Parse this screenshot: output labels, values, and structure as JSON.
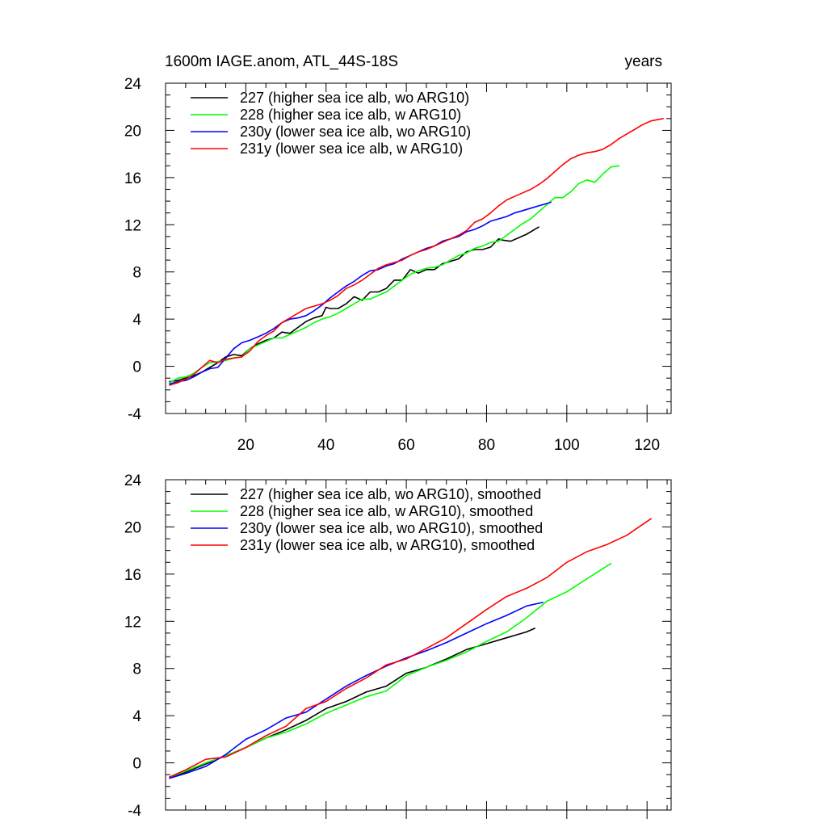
{
  "figure": {
    "title_left": "1600m IAGE.anom, ATL_44S-18S",
    "title_right": "years"
  },
  "chart_data": [
    {
      "type": "line",
      "panel": "top",
      "title": "1600m IAGE.anom, ATL_44S-18S",
      "units": "years",
      "xlim": [
        0,
        126
      ],
      "ylim": [
        -4,
        24
      ],
      "xticks": [
        20,
        40,
        60,
        80,
        100,
        120
      ],
      "xtick_labels_shown": true,
      "yticks": [
        -4,
        0,
        4,
        8,
        12,
        16,
        20,
        24
      ],
      "legend_position": "top-left",
      "series": [
        {
          "name": "227 (higher sea ice alb, wo ARG10)",
          "color": "#000000",
          "x": [
            1,
            3,
            5,
            7,
            9,
            11,
            13,
            15,
            17,
            19,
            21,
            23,
            25,
            27,
            29,
            31,
            33,
            35,
            37,
            39,
            40,
            41,
            43,
            45,
            47,
            49,
            51,
            53,
            55,
            57,
            59,
            61,
            63,
            65,
            67,
            69,
            71,
            73,
            75,
            77,
            79,
            81,
            83,
            84,
            86,
            88,
            90,
            92,
            93
          ],
          "y": [
            -1.3,
            -1.2,
            -1.0,
            -0.8,
            -0.5,
            -0.1,
            0.3,
            0.8,
            1.0,
            0.9,
            1.5,
            1.9,
            2.2,
            2.4,
            2.9,
            2.8,
            3.3,
            3.8,
            4.1,
            4.3,
            5.0,
            4.9,
            4.9,
            5.3,
            5.9,
            5.6,
            6.3,
            6.3,
            6.6,
            7.3,
            7.3,
            8.2,
            7.9,
            8.2,
            8.2,
            8.7,
            8.9,
            9.1,
            9.7,
            9.9,
            9.9,
            10.1,
            10.8,
            10.7,
            10.6,
            10.9,
            11.2,
            11.6,
            11.8
          ]
        },
        {
          "name": "228 (higher sea ice alb, w ARG10)",
          "color": "#00ff00",
          "x": [
            1,
            3,
            5,
            7,
            9,
            11,
            13,
            15,
            17,
            19,
            21,
            23,
            25,
            27,
            29,
            31,
            33,
            35,
            37,
            39,
            41,
            43,
            45,
            47,
            49,
            51,
            53,
            55,
            57,
            59,
            61,
            63,
            65,
            67,
            69,
            71,
            73,
            75,
            77,
            79,
            81,
            83,
            85,
            87,
            89,
            91,
            93,
            95,
            97,
            99,
            101,
            103,
            105,
            107,
            109,
            111,
            113
          ],
          "y": [
            -1.4,
            -1.0,
            -0.9,
            -0.6,
            -0.1,
            0.3,
            0.4,
            0.5,
            0.7,
            0.8,
            1.5,
            1.8,
            2.1,
            2.4,
            2.4,
            2.7,
            3.0,
            3.3,
            3.7,
            4.0,
            4.2,
            4.5,
            4.9,
            5.3,
            5.7,
            5.7,
            6.0,
            6.3,
            6.8,
            7.3,
            7.8,
            8.1,
            8.3,
            8.4,
            8.6,
            9.0,
            9.4,
            9.6,
            10.0,
            10.2,
            10.5,
            10.6,
            11.1,
            11.6,
            12.1,
            12.5,
            13.1,
            13.7,
            14.3,
            14.3,
            14.8,
            15.5,
            15.8,
            15.6,
            16.3,
            16.9,
            17.0
          ]
        },
        {
          "name": "230y (lower sea ice alb, wo ARG10)",
          "color": "#0000ff",
          "x": [
            1,
            3,
            5,
            7,
            9,
            11,
            13,
            15,
            17,
            19,
            21,
            23,
            25,
            27,
            29,
            31,
            33,
            35,
            37,
            39,
            41,
            43,
            45,
            47,
            49,
            51,
            53,
            55,
            57,
            59,
            61,
            63,
            65,
            67,
            69,
            71,
            73,
            75,
            77,
            79,
            81,
            83,
            85,
            87,
            89,
            91,
            93,
            95,
            96
          ],
          "y": [
            -1.5,
            -1.3,
            -1.2,
            -0.9,
            -0.5,
            -0.2,
            -0.1,
            0.7,
            1.5,
            2.0,
            2.2,
            2.5,
            2.8,
            3.2,
            3.7,
            4.0,
            4.1,
            4.3,
            4.7,
            5.2,
            5.8,
            6.3,
            6.8,
            7.2,
            7.7,
            8.1,
            8.2,
            8.5,
            8.7,
            9.1,
            9.4,
            9.7,
            10.0,
            10.2,
            10.6,
            10.8,
            11.0,
            11.4,
            11.6,
            11.9,
            12.3,
            12.5,
            12.7,
            13.0,
            13.2,
            13.4,
            13.6,
            13.8,
            13.9
          ]
        },
        {
          "name": "231y (lower sea ice alb, w ARG10)",
          "color": "#ff0000",
          "x": [
            1,
            3,
            5,
            7,
            9,
            11,
            13,
            15,
            17,
            19,
            21,
            23,
            25,
            27,
            29,
            31,
            33,
            35,
            37,
            39,
            41,
            43,
            45,
            47,
            49,
            51,
            53,
            55,
            57,
            59,
            61,
            63,
            65,
            67,
            69,
            71,
            73,
            75,
            77,
            79,
            81,
            83,
            85,
            87,
            89,
            91,
            93,
            95,
            97,
            99,
            101,
            103,
            105,
            107,
            109,
            111,
            113,
            115,
            117,
            119,
            121,
            124
          ],
          "y": [
            -1.6,
            -1.4,
            -1.1,
            -0.7,
            -0.1,
            0.5,
            0.3,
            0.6,
            0.7,
            0.8,
            1.3,
            2.1,
            2.6,
            3.0,
            3.7,
            4.1,
            4.5,
            4.9,
            5.1,
            5.3,
            5.6,
            6.0,
            6.6,
            6.9,
            7.3,
            7.8,
            8.3,
            8.6,
            8.8,
            9.0,
            9.4,
            9.7,
            9.9,
            10.2,
            10.5,
            10.8,
            11.1,
            11.5,
            12.2,
            12.5,
            13.0,
            13.6,
            14.1,
            14.4,
            14.7,
            15.0,
            15.4,
            15.9,
            16.5,
            17.1,
            17.6,
            17.9,
            18.1,
            18.2,
            18.4,
            18.8,
            19.3,
            19.7,
            20.1,
            20.5,
            20.8,
            21.0
          ]
        }
      ]
    },
    {
      "type": "line",
      "panel": "bottom",
      "xlim": [
        0,
        126
      ],
      "ylim": [
        -4,
        24
      ],
      "xticks": [
        20,
        40,
        60,
        80,
        100,
        120
      ],
      "xtick_labels_shown": false,
      "yticks": [
        -4,
        0,
        4,
        8,
        12,
        16,
        20,
        24
      ],
      "legend_position": "top-left",
      "series": [
        {
          "name": "227 (higher sea ice alb, wo ARG10), smoothed",
          "color": "#000000",
          "x": [
            1,
            5,
            10,
            15,
            20,
            25,
            30,
            35,
            40,
            45,
            50,
            55,
            60,
            65,
            70,
            75,
            80,
            85,
            90,
            92
          ],
          "y": [
            -1.2,
            -0.8,
            -0.1,
            0.6,
            1.3,
            2.1,
            2.8,
            3.6,
            4.6,
            5.2,
            6.0,
            6.5,
            7.6,
            8.1,
            8.8,
            9.6,
            10.1,
            10.6,
            11.1,
            11.4
          ]
        },
        {
          "name": "228 (higher sea ice alb, w ARG10), smoothed",
          "color": "#00ff00",
          "x": [
            1,
            5,
            10,
            15,
            20,
            25,
            30,
            35,
            40,
            45,
            50,
            55,
            60,
            65,
            70,
            75,
            80,
            85,
            90,
            95,
            100,
            105,
            111
          ],
          "y": [
            -1.2,
            -0.7,
            0.0,
            0.6,
            1.3,
            2.1,
            2.6,
            3.3,
            4.2,
            4.9,
            5.6,
            6.1,
            7.4,
            8.1,
            8.7,
            9.4,
            10.3,
            11.1,
            12.3,
            13.7,
            14.5,
            15.6,
            16.9
          ]
        },
        {
          "name": "230y (lower sea ice alb, wo ARG10), smoothed",
          "color": "#0000ff",
          "x": [
            1,
            5,
            10,
            15,
            20,
            25,
            30,
            35,
            40,
            45,
            50,
            55,
            60,
            65,
            70,
            75,
            80,
            85,
            90,
            94
          ],
          "y": [
            -1.3,
            -0.9,
            -0.3,
            0.7,
            2.0,
            2.8,
            3.8,
            4.3,
            5.4,
            6.5,
            7.4,
            8.2,
            8.9,
            9.5,
            10.2,
            11.0,
            11.8,
            12.5,
            13.3,
            13.6
          ]
        },
        {
          "name": "231y (lower sea ice alb, w ARG10), smoothed",
          "color": "#ff0000",
          "x": [
            1,
            5,
            10,
            15,
            20,
            25,
            30,
            35,
            40,
            45,
            50,
            55,
            60,
            65,
            70,
            75,
            80,
            85,
            90,
            95,
            100,
            105,
            110,
            115,
            121
          ],
          "y": [
            -1.2,
            -0.6,
            0.3,
            0.5,
            1.3,
            2.3,
            3.1,
            4.6,
            5.2,
            6.3,
            7.2,
            8.3,
            8.8,
            9.7,
            10.6,
            11.8,
            13.0,
            14.1,
            14.8,
            15.7,
            17.0,
            17.9,
            18.5,
            19.3,
            20.7
          ]
        }
      ]
    }
  ]
}
